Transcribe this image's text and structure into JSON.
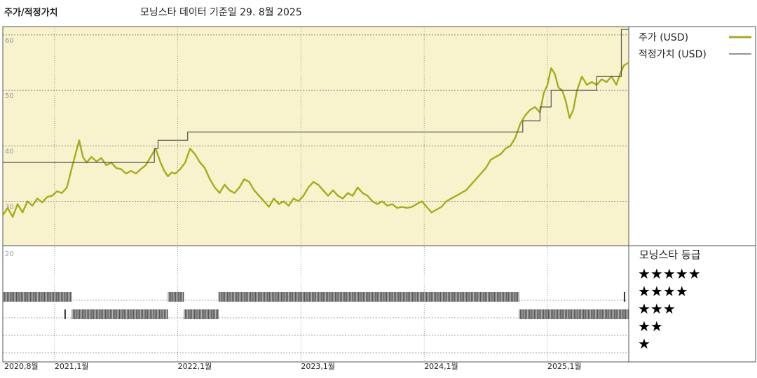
{
  "chart_data": {
    "type": "line",
    "title": "주가/적정가치",
    "subtitle": "모닝스타 데이터 기준일 29. 8월 2025",
    "y_ticks": [
      60,
      50,
      40,
      30,
      20
    ],
    "ylim": [
      22,
      61.5
    ],
    "x_labels": [
      "2020,8월",
      "2021,1월",
      "2022,1월",
      "2023,1월",
      "2024,1월",
      "2025,1월"
    ],
    "x_label_positions": [
      2020.58,
      2021.0,
      2022.0,
      2023.0,
      2024.0,
      2025.0
    ],
    "xlim": [
      2020.58,
      2025.66
    ],
    "legend": [
      {
        "label": "주가 (USD)",
        "color": "#a8ab1c"
      },
      {
        "label": "적정가치 (USD)",
        "color": "#555555"
      }
    ],
    "rating_title": "모닝스타 등급",
    "rating_labels": [
      "★★★★★",
      "★★★★",
      "★★★",
      "★★",
      "★"
    ],
    "series": [
      {
        "name": "주가 (USD)",
        "color": "#a8ab1c",
        "points": [
          [
            2020.58,
            27.5
          ],
          [
            2020.62,
            28.8
          ],
          [
            2020.66,
            27.2
          ],
          [
            2020.7,
            29.5
          ],
          [
            2020.74,
            28.0
          ],
          [
            2020.78,
            30.0
          ],
          [
            2020.82,
            29.2
          ],
          [
            2020.86,
            30.5
          ],
          [
            2020.9,
            29.8
          ],
          [
            2020.94,
            30.8
          ],
          [
            2020.98,
            31.0
          ],
          [
            2021.02,
            31.8
          ],
          [
            2021.06,
            31.5
          ],
          [
            2021.1,
            32.5
          ],
          [
            2021.14,
            36.0
          ],
          [
            2021.17,
            38.5
          ],
          [
            2021.2,
            41.0
          ],
          [
            2021.23,
            38.0
          ],
          [
            2021.26,
            37.0
          ],
          [
            2021.3,
            38.0
          ],
          [
            2021.34,
            37.2
          ],
          [
            2021.38,
            37.8
          ],
          [
            2021.42,
            36.5
          ],
          [
            2021.46,
            37.0
          ],
          [
            2021.5,
            36.0
          ],
          [
            2021.54,
            35.8
          ],
          [
            2021.58,
            35.0
          ],
          [
            2021.62,
            35.5
          ],
          [
            2021.66,
            35.0
          ],
          [
            2021.7,
            35.8
          ],
          [
            2021.74,
            36.5
          ],
          [
            2021.78,
            38.0
          ],
          [
            2021.82,
            39.5
          ],
          [
            2021.86,
            37.0
          ],
          [
            2021.89,
            35.5
          ],
          [
            2021.92,
            34.5
          ],
          [
            2021.95,
            35.2
          ],
          [
            2021.98,
            35.0
          ],
          [
            2022.02,
            35.8
          ],
          [
            2022.06,
            37.0
          ],
          [
            2022.1,
            39.5
          ],
          [
            2022.14,
            38.5
          ],
          [
            2022.18,
            37.0
          ],
          [
            2022.22,
            36.0
          ],
          [
            2022.26,
            34.0
          ],
          [
            2022.3,
            32.5
          ],
          [
            2022.34,
            31.5
          ],
          [
            2022.38,
            33.0
          ],
          [
            2022.42,
            32.0
          ],
          [
            2022.46,
            31.5
          ],
          [
            2022.5,
            32.5
          ],
          [
            2022.54,
            34.0
          ],
          [
            2022.58,
            33.5
          ],
          [
            2022.62,
            32.0
          ],
          [
            2022.66,
            31.0
          ],
          [
            2022.7,
            30.0
          ],
          [
            2022.74,
            29.0
          ],
          [
            2022.78,
            30.5
          ],
          [
            2022.82,
            29.5
          ],
          [
            2022.86,
            30.0
          ],
          [
            2022.9,
            29.2
          ],
          [
            2022.94,
            30.5
          ],
          [
            2022.98,
            30.0
          ],
          [
            2023.02,
            31.0
          ],
          [
            2023.06,
            32.5
          ],
          [
            2023.1,
            33.5
          ],
          [
            2023.14,
            33.0
          ],
          [
            2023.18,
            32.0
          ],
          [
            2023.22,
            31.0
          ],
          [
            2023.26,
            32.0
          ],
          [
            2023.3,
            31.0
          ],
          [
            2023.34,
            30.5
          ],
          [
            2023.38,
            31.5
          ],
          [
            2023.42,
            31.0
          ],
          [
            2023.46,
            32.5
          ],
          [
            2023.5,
            31.5
          ],
          [
            2023.54,
            31.0
          ],
          [
            2023.58,
            30.0
          ],
          [
            2023.62,
            29.5
          ],
          [
            2023.66,
            30.0
          ],
          [
            2023.7,
            29.2
          ],
          [
            2023.74,
            29.5
          ],
          [
            2023.78,
            28.8
          ],
          [
            2023.82,
            29.0
          ],
          [
            2023.86,
            28.8
          ],
          [
            2023.9,
            29.0
          ],
          [
            2023.94,
            29.5
          ],
          [
            2023.98,
            30.0
          ],
          [
            2024.02,
            29.0
          ],
          [
            2024.06,
            28.0
          ],
          [
            2024.1,
            28.5
          ],
          [
            2024.14,
            29.0
          ],
          [
            2024.18,
            30.0
          ],
          [
            2024.22,
            30.5
          ],
          [
            2024.26,
            31.0
          ],
          [
            2024.3,
            31.5
          ],
          [
            2024.34,
            32.0
          ],
          [
            2024.38,
            33.0
          ],
          [
            2024.42,
            34.0
          ],
          [
            2024.46,
            35.0
          ],
          [
            2024.5,
            36.0
          ],
          [
            2024.54,
            37.5
          ],
          [
            2024.58,
            38.0
          ],
          [
            2024.62,
            38.5
          ],
          [
            2024.66,
            39.5
          ],
          [
            2024.7,
            40.0
          ],
          [
            2024.74,
            41.5
          ],
          [
            2024.78,
            44.0
          ],
          [
            2024.82,
            45.5
          ],
          [
            2024.86,
            46.5
          ],
          [
            2024.9,
            47.0
          ],
          [
            2024.94,
            46.0
          ],
          [
            2024.97,
            49.5
          ],
          [
            2025.0,
            51.0
          ],
          [
            2025.03,
            54.0
          ],
          [
            2025.06,
            53.0
          ],
          [
            2025.09,
            50.5
          ],
          [
            2025.12,
            50.0
          ],
          [
            2025.15,
            48.0
          ],
          [
            2025.18,
            45.0
          ],
          [
            2025.21,
            46.5
          ],
          [
            2025.24,
            50.0
          ],
          [
            2025.28,
            52.5
          ],
          [
            2025.32,
            51.0
          ],
          [
            2025.36,
            51.5
          ],
          [
            2025.4,
            51.0
          ],
          [
            2025.44,
            52.0
          ],
          [
            2025.48,
            51.5
          ],
          [
            2025.52,
            52.5
          ],
          [
            2025.56,
            51.0
          ],
          [
            2025.59,
            53.0
          ],
          [
            2025.62,
            54.5
          ],
          [
            2025.66,
            55.0
          ]
        ]
      },
      {
        "name": "적정가치 (USD)",
        "color": "#555555",
        "points": [
          [
            2020.58,
            37.0
          ],
          [
            2021.81,
            37.0
          ],
          [
            2021.81,
            39.5
          ],
          [
            2021.84,
            39.5
          ],
          [
            2021.84,
            41.0
          ],
          [
            2022.08,
            41.0
          ],
          [
            2022.08,
            42.5
          ],
          [
            2024.8,
            42.5
          ],
          [
            2024.8,
            44.5
          ],
          [
            2024.94,
            44.5
          ],
          [
            2024.94,
            47.0
          ],
          [
            2025.03,
            47.0
          ],
          [
            2025.03,
            50.0
          ],
          [
            2025.4,
            50.0
          ],
          [
            2025.4,
            52.5
          ],
          [
            2025.6,
            52.5
          ],
          [
            2025.6,
            61.0
          ],
          [
            2025.66,
            61.0
          ]
        ]
      }
    ],
    "ratings": [
      {
        "stars": 4,
        "from": 2020.58,
        "to": 2021.14
      },
      {
        "stars": 3,
        "from": 2021.08,
        "to": 2021.09
      },
      {
        "stars": 3,
        "from": 2021.14,
        "to": 2021.92
      },
      {
        "stars": 4,
        "from": 2021.92,
        "to": 2022.05
      },
      {
        "stars": 3,
        "from": 2022.05,
        "to": 2022.33
      },
      {
        "stars": 4,
        "from": 2022.33,
        "to": 2024.77
      },
      {
        "stars": 3,
        "from": 2024.77,
        "to": 2025.66
      },
      {
        "stars": 4,
        "from": 2025.62,
        "to": 2025.63
      }
    ]
  }
}
